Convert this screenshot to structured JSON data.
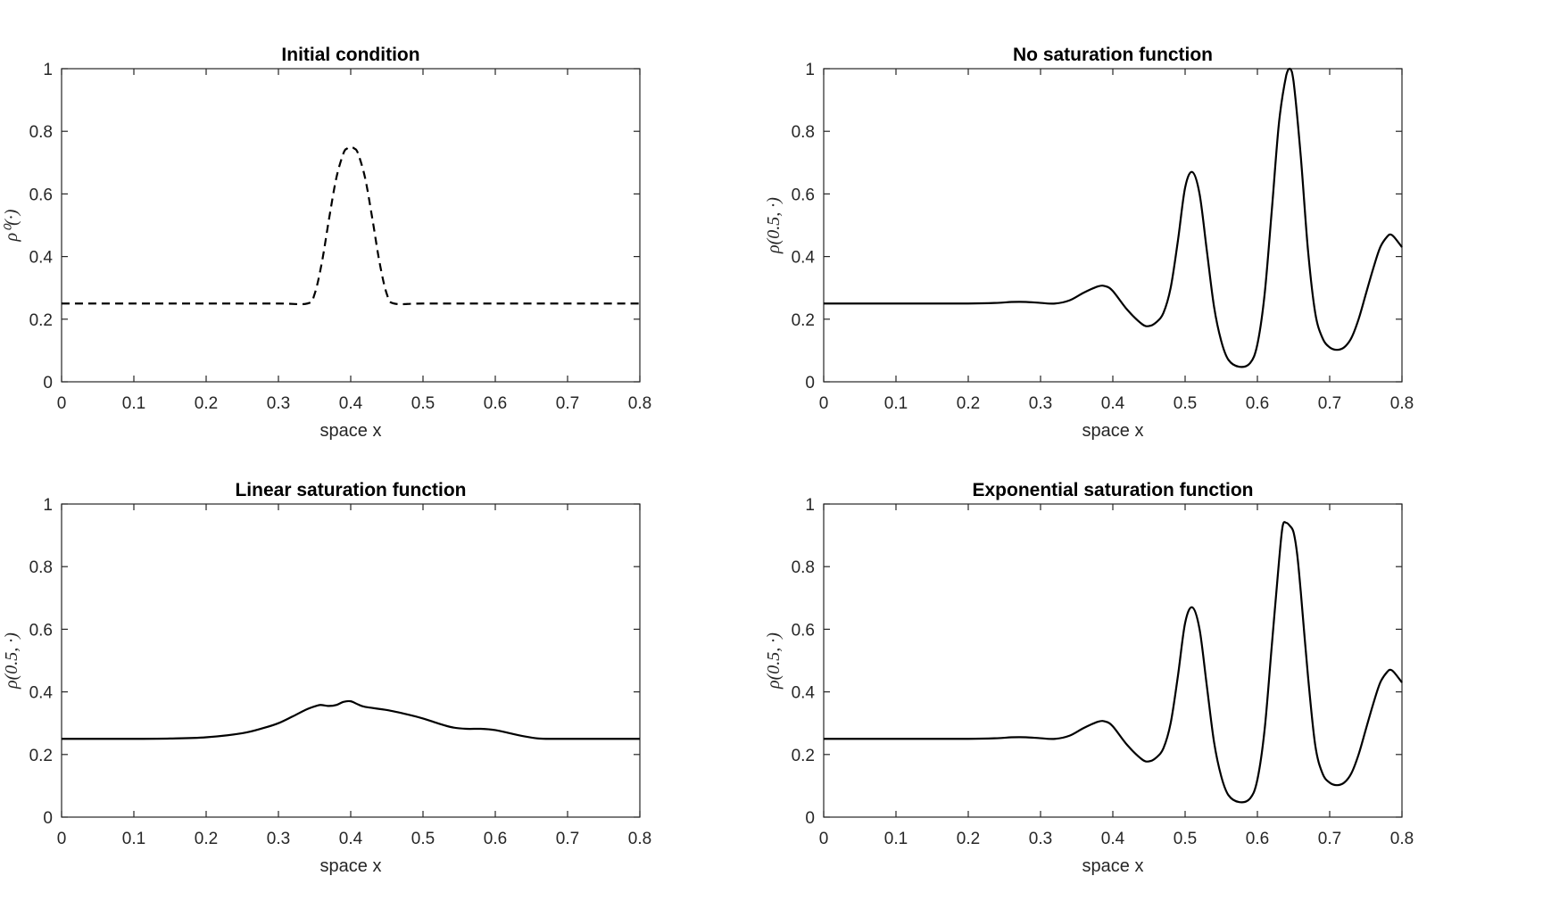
{
  "chart_data": [
    {
      "type": "line",
      "title": "Initial condition",
      "xlabel": "space x",
      "ylabel": "ρ⁰(·)",
      "xlim": [
        0,
        0.8
      ],
      "ylim": [
        0,
        1
      ],
      "xticks": [
        "0",
        "0.1",
        "0.2",
        "0.3",
        "0.4",
        "0.5",
        "0.6",
        "0.7",
        "0.8"
      ],
      "yticks": [
        "0",
        "0.2",
        "0.4",
        "0.6",
        "0.8",
        "1"
      ],
      "grid": false,
      "line_style": "dashed",
      "color": "#000000",
      "series": [
        {
          "x": [
            0,
            0.1,
            0.2,
            0.3,
            0.34,
            0.35,
            0.36,
            0.37,
            0.38,
            0.39,
            0.395,
            0.4,
            0.405,
            0.41,
            0.42,
            0.43,
            0.44,
            0.45,
            0.46,
            0.5,
            0.6,
            0.7,
            0.8
          ],
          "values": [
            0.25,
            0.25,
            0.25,
            0.25,
            0.25,
            0.28,
            0.38,
            0.52,
            0.65,
            0.73,
            0.745,
            0.75,
            0.745,
            0.73,
            0.65,
            0.52,
            0.38,
            0.28,
            0.25,
            0.25,
            0.25,
            0.25,
            0.25
          ]
        }
      ]
    },
    {
      "type": "line",
      "title": "No saturation function",
      "xlabel": "space x",
      "ylabel": "ρ(0.5, ·)",
      "xlim": [
        0,
        0.8
      ],
      "ylim": [
        0,
        1
      ],
      "xticks": [
        "0",
        "0.1",
        "0.2",
        "0.3",
        "0.4",
        "0.5",
        "0.6",
        "0.7",
        "0.8"
      ],
      "yticks": [
        "0",
        "0.2",
        "0.4",
        "0.6",
        "0.8",
        "1"
      ],
      "grid": false,
      "line_style": "solid",
      "color": "#000000",
      "series": [
        {
          "x": [
            0,
            0.1,
            0.2,
            0.24,
            0.26,
            0.28,
            0.3,
            0.32,
            0.34,
            0.36,
            0.38,
            0.39,
            0.4,
            0.42,
            0.44,
            0.45,
            0.46,
            0.47,
            0.48,
            0.49,
            0.5,
            0.51,
            0.52,
            0.53,
            0.54,
            0.55,
            0.56,
            0.575,
            0.59,
            0.6,
            0.61,
            0.62,
            0.63,
            0.64,
            0.645,
            0.65,
            0.66,
            0.67,
            0.68,
            0.69,
            0.7,
            0.71,
            0.72,
            0.73,
            0.74,
            0.75,
            0.76,
            0.77,
            0.78,
            0.785,
            0.79,
            0.8
          ],
          "values": [
            0.25,
            0.25,
            0.25,
            0.252,
            0.255,
            0.255,
            0.252,
            0.25,
            0.26,
            0.285,
            0.305,
            0.305,
            0.29,
            0.23,
            0.185,
            0.178,
            0.19,
            0.22,
            0.3,
            0.45,
            0.62,
            0.67,
            0.6,
            0.42,
            0.24,
            0.13,
            0.07,
            0.048,
            0.06,
            0.12,
            0.28,
            0.55,
            0.83,
            0.98,
            1.0,
            0.96,
            0.72,
            0.42,
            0.22,
            0.14,
            0.11,
            0.102,
            0.11,
            0.14,
            0.2,
            0.28,
            0.36,
            0.43,
            0.465,
            0.47,
            0.46,
            0.43
          ]
        }
      ]
    },
    {
      "type": "line",
      "title": "Linear saturation function",
      "xlabel": "space x",
      "ylabel": "ρ(0.5, ·)",
      "xlim": [
        0,
        0.8
      ],
      "ylim": [
        0,
        1
      ],
      "xticks": [
        "0",
        "0.1",
        "0.2",
        "0.3",
        "0.4",
        "0.5",
        "0.6",
        "0.7",
        "0.8"
      ],
      "yticks": [
        "0",
        "0.2",
        "0.4",
        "0.6",
        "0.8",
        "1"
      ],
      "grid": false,
      "line_style": "solid",
      "color": "#000000",
      "series": [
        {
          "x": [
            0,
            0.1,
            0.15,
            0.2,
            0.25,
            0.28,
            0.3,
            0.32,
            0.34,
            0.355,
            0.36,
            0.37,
            0.38,
            0.39,
            0.4,
            0.41,
            0.42,
            0.45,
            0.48,
            0.5,
            0.52,
            0.54,
            0.56,
            0.58,
            0.6,
            0.62,
            0.64,
            0.66,
            0.68,
            0.7,
            0.8
          ],
          "values": [
            0.25,
            0.25,
            0.251,
            0.255,
            0.268,
            0.285,
            0.3,
            0.322,
            0.345,
            0.357,
            0.358,
            0.355,
            0.358,
            0.368,
            0.37,
            0.36,
            0.352,
            0.342,
            0.327,
            0.315,
            0.3,
            0.287,
            0.282,
            0.282,
            0.278,
            0.268,
            0.258,
            0.251,
            0.25,
            0.25,
            0.25
          ]
        }
      ]
    },
    {
      "type": "line",
      "title": "Exponential saturation function",
      "xlabel": "space x",
      "ylabel": "ρ(0.5, ·)",
      "xlim": [
        0,
        0.8
      ],
      "ylim": [
        0,
        1
      ],
      "xticks": [
        "0",
        "0.1",
        "0.2",
        "0.3",
        "0.4",
        "0.5",
        "0.6",
        "0.7",
        "0.8"
      ],
      "yticks": [
        "0",
        "0.2",
        "0.4",
        "0.6",
        "0.8",
        "1"
      ],
      "grid": false,
      "line_style": "solid",
      "color": "#000000",
      "series": [
        {
          "x": [
            0,
            0.1,
            0.2,
            0.24,
            0.26,
            0.28,
            0.3,
            0.32,
            0.34,
            0.36,
            0.38,
            0.39,
            0.4,
            0.42,
            0.44,
            0.45,
            0.46,
            0.47,
            0.48,
            0.49,
            0.5,
            0.51,
            0.52,
            0.53,
            0.54,
            0.55,
            0.56,
            0.575,
            0.59,
            0.6,
            0.61,
            0.62,
            0.63,
            0.635,
            0.64,
            0.645,
            0.65,
            0.655,
            0.66,
            0.67,
            0.68,
            0.69,
            0.7,
            0.71,
            0.72,
            0.73,
            0.74,
            0.75,
            0.76,
            0.77,
            0.78,
            0.785,
            0.79,
            0.8
          ],
          "values": [
            0.25,
            0.25,
            0.25,
            0.252,
            0.255,
            0.255,
            0.252,
            0.25,
            0.26,
            0.285,
            0.305,
            0.305,
            0.29,
            0.23,
            0.185,
            0.178,
            0.19,
            0.22,
            0.3,
            0.45,
            0.62,
            0.67,
            0.6,
            0.42,
            0.24,
            0.13,
            0.07,
            0.048,
            0.06,
            0.12,
            0.28,
            0.55,
            0.82,
            0.93,
            0.94,
            0.93,
            0.91,
            0.84,
            0.72,
            0.45,
            0.23,
            0.14,
            0.11,
            0.102,
            0.11,
            0.14,
            0.2,
            0.28,
            0.36,
            0.43,
            0.465,
            0.47,
            0.46,
            0.43
          ]
        }
      ]
    }
  ]
}
